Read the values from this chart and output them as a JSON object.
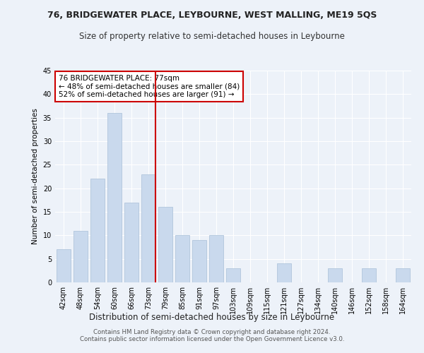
{
  "title": "76, BRIDGEWATER PLACE, LEYBOURNE, WEST MALLING, ME19 5QS",
  "subtitle": "Size of property relative to semi-detached houses in Leybourne",
  "xlabel": "Distribution of semi-detached houses by size in Leybourne",
  "ylabel": "Number of semi-detached properties",
  "categories": [
    "42sqm",
    "48sqm",
    "54sqm",
    "60sqm",
    "66sqm",
    "73sqm",
    "79sqm",
    "85sqm",
    "91sqm",
    "97sqm",
    "103sqm",
    "109sqm",
    "115sqm",
    "121sqm",
    "127sqm",
    "134sqm",
    "140sqm",
    "146sqm",
    "152sqm",
    "158sqm",
    "164sqm"
  ],
  "values": [
    7,
    11,
    22,
    36,
    17,
    23,
    16,
    10,
    9,
    10,
    3,
    0,
    0,
    4,
    0,
    0,
    3,
    0,
    3,
    0,
    3
  ],
  "bar_color": "#c9d9ed",
  "bar_edge_color": "#a8bfd8",
  "vline_color": "#cc0000",
  "annotation_text": "76 BRIDGEWATER PLACE: 77sqm\n← 48% of semi-detached houses are smaller (84)\n52% of semi-detached houses are larger (91) →",
  "annotation_box_color": "#ffffff",
  "annotation_box_edge": "#cc0000",
  "ylim": [
    0,
    45
  ],
  "yticks": [
    0,
    5,
    10,
    15,
    20,
    25,
    30,
    35,
    40,
    45
  ],
  "footer": "Contains HM Land Registry data © Crown copyright and database right 2024.\nContains public sector information licensed under the Open Government Licence v3.0.",
  "bg_color": "#edf2f9",
  "title_fontsize": 9,
  "subtitle_fontsize": 8.5,
  "tick_fontsize": 7,
  "ylabel_fontsize": 7.5,
  "xlabel_fontsize": 8.5,
  "footer_fontsize": 6.2
}
